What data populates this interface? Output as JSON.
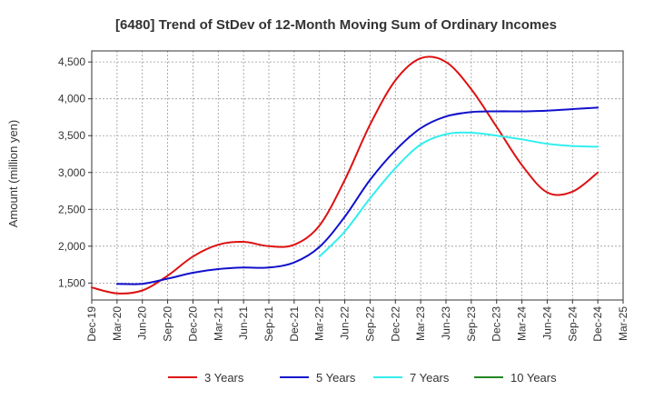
{
  "chart_data": {
    "type": "line",
    "title": "[6480]  Trend of StDev of 12-Month Moving Sum of Ordinary Incomes",
    "xlabel": "",
    "ylabel": "Amount (million yen)",
    "ylim": [
      1270,
      4650
    ],
    "yticks": [
      1500,
      2000,
      2500,
      3000,
      3500,
      4000,
      4500
    ],
    "ytick_labels": [
      "1,500",
      "2,000",
      "2,500",
      "3,000",
      "3,500",
      "4,000",
      "4,500"
    ],
    "x_labels": [
      "Dec-19",
      "Mar-20",
      "Jun-20",
      "Sep-20",
      "Dec-20",
      "Mar-21",
      "Jun-21",
      "Sep-21",
      "Dec-21",
      "Mar-22",
      "Jun-22",
      "Sep-22",
      "Dec-22",
      "Mar-23",
      "Jun-23",
      "Sep-23",
      "Dec-23",
      "Mar-24",
      "Jun-24",
      "Sep-24",
      "Dec-24",
      "Mar-25"
    ],
    "grid": true,
    "legend_position": "bottom",
    "series": [
      {
        "name": "3 Years",
        "color": "#dd1111",
        "values": [
          1440,
          1360,
          1400,
          1600,
          1860,
          2020,
          2060,
          2000,
          2020,
          2280,
          2900,
          3650,
          4250,
          4550,
          4500,
          4130,
          3620,
          3100,
          2730,
          2740,
          3000,
          null
        ]
      },
      {
        "name": "5 Years",
        "color": "#1111cc",
        "values": [
          null,
          1490,
          1490,
          1560,
          1640,
          1690,
          1710,
          1710,
          1780,
          1990,
          2400,
          2900,
          3300,
          3600,
          3760,
          3820,
          3830,
          3830,
          3840,
          3860,
          3880,
          null
        ]
      },
      {
        "name": "7 Years",
        "color": "#33eeee",
        "values": [
          null,
          null,
          null,
          null,
          null,
          null,
          null,
          null,
          null,
          1860,
          2200,
          2650,
          3060,
          3380,
          3520,
          3540,
          3500,
          3450,
          3390,
          3360,
          3350,
          null
        ]
      },
      {
        "name": "10 Years",
        "color": "#228822",
        "values": [
          null,
          null,
          null,
          null,
          null,
          null,
          null,
          null,
          null,
          null,
          null,
          null,
          null,
          null,
          null,
          null,
          null,
          null,
          null,
          null,
          null,
          null
        ]
      }
    ]
  }
}
